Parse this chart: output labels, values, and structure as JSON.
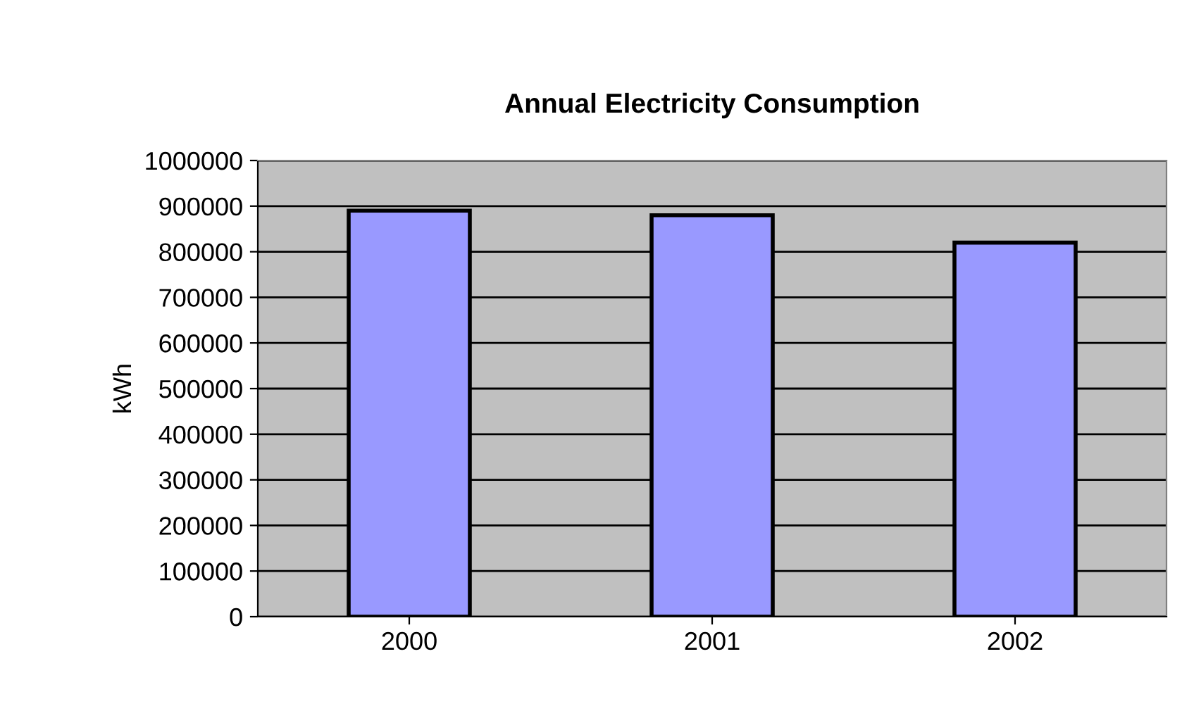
{
  "chart_data": {
    "type": "bar",
    "title": "Annual Electricity Consumption",
    "ylabel": "kWh",
    "categories": [
      "2000",
      "2001",
      "2002"
    ],
    "values": [
      890000,
      880000,
      820000
    ],
    "color": "#9999ff",
    "ylim": [
      0,
      1000000
    ],
    "yticks": [
      0,
      100000,
      200000,
      300000,
      400000,
      500000,
      600000,
      700000,
      800000,
      900000,
      1000000
    ],
    "grid": "y",
    "legend": false
  }
}
